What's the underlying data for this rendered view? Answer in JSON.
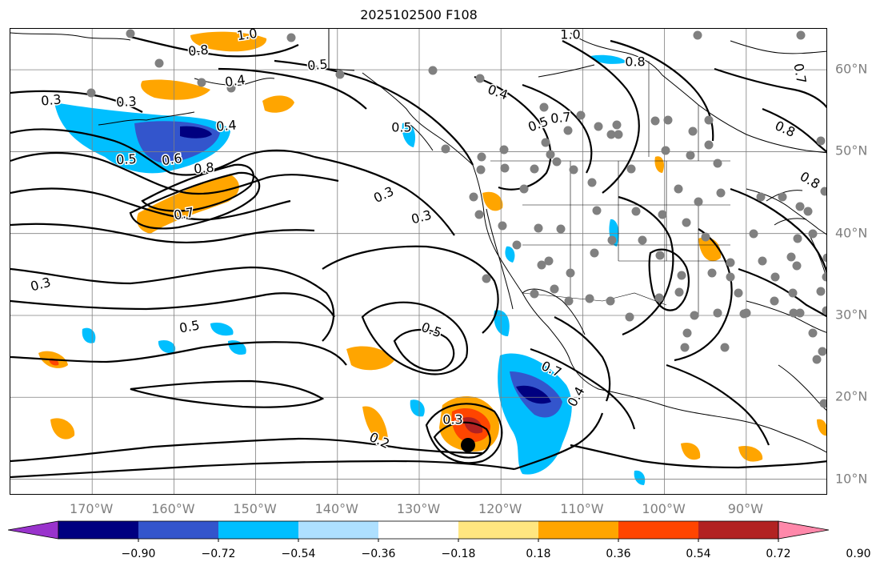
{
  "title": "2025102500 F108",
  "map": {
    "lat_ticks": [
      {
        "label": "60°N",
        "lat": 60
      },
      {
        "label": "50°N",
        "lat": 50
      },
      {
        "label": "40°N",
        "lat": 40
      },
      {
        "label": "30°N",
        "lat": 30
      },
      {
        "label": "20°N",
        "lat": 20
      },
      {
        "label": "10°N",
        "lat": 10
      }
    ],
    "lon_ticks": [
      {
        "label": "170°W",
        "lon": -170
      },
      {
        "label": "160°W",
        "lon": -160
      },
      {
        "label": "150°W",
        "lon": -150
      },
      {
        "label": "140°W",
        "lon": -140
      },
      {
        "label": "130°W",
        "lon": -130
      },
      {
        "label": "120°W",
        "lon": -120
      },
      {
        "label": "110°W",
        "lon": -110
      },
      {
        "label": "100°W",
        "lon": -100
      },
      {
        "label": "90°W",
        "lon": -90
      }
    ],
    "extent": {
      "lon_min": -180,
      "lon_max": -80,
      "lat_min": 8,
      "lat_max": 65
    },
    "grid": true,
    "contour_labels": [
      "1.0",
      "0.8",
      "0.5",
      "0.4",
      "0.3",
      "0.3",
      "0.5",
      "0.4",
      "0.5",
      "0.6",
      "0.8",
      "0.7",
      "0.7",
      "0.4",
      "0.3",
      "0.5",
      "0.3",
      "0.5",
      "0.3",
      "0.3",
      "0.2",
      "0.4",
      "1.0",
      "0.8",
      "0.8",
      "0.7",
      "0.7",
      "0.5",
      "0.8"
    ],
    "colors": {
      "contour": "#000000",
      "grid": "#808080",
      "coast": "#000000",
      "station_dot": "#808080",
      "center_marker": "#000000"
    }
  },
  "colorbar": {
    "colors": [
      "#9933cc",
      "#000080",
      "#3355cc",
      "#00bfff",
      "#aee0ff",
      "#ffffff",
      "#ffe680",
      "#ffa500",
      "#ff4500",
      "#b22222",
      "#ff88aa"
    ],
    "tick_labels": [
      "−0.90",
      "−0.72",
      "−0.54",
      "−0.36",
      "−0.18",
      "0.18",
      "0.36",
      "0.54",
      "0.72",
      "0.90"
    ],
    "extend": "both"
  }
}
